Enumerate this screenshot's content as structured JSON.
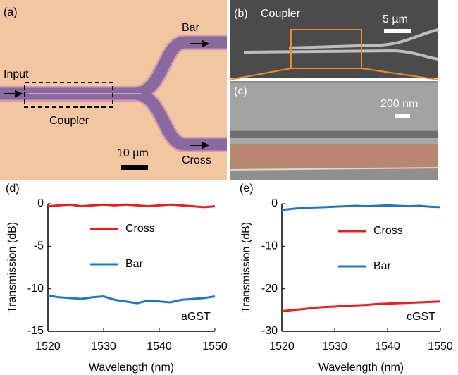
{
  "panels": {
    "a": {
      "label": "(a)",
      "input": "Input",
      "bar": "Bar",
      "cross": "Cross",
      "coupler": "Coupler",
      "scale": "10 µm"
    },
    "b": {
      "label": "(b)",
      "title": "Coupler",
      "scale": "5 µm"
    },
    "c": {
      "label": "(c)",
      "scale": "200 nm"
    }
  },
  "chart_data": [
    {
      "type": "line",
      "panel_label": "(d)",
      "annotation": "aGST",
      "x_label": "Wavelength (nm)",
      "y_label": "Transmission (dB)",
      "x": [
        1520,
        1522,
        1524,
        1526,
        1528,
        1530,
        1532,
        1534,
        1536,
        1538,
        1540,
        1542,
        1544,
        1546,
        1548,
        1550
      ],
      "xlim": [
        1520,
        1550
      ],
      "xticks": [
        1520,
        1530,
        1540,
        1550
      ],
      "ylim": [
        -15,
        0
      ],
      "yticks": [
        -15,
        -10,
        -5,
        0
      ],
      "series": [
        {
          "name": "Cross",
          "color": "#ee1c1c",
          "values": [
            -0.3,
            -0.2,
            -0.1,
            -0.3,
            -0.2,
            -0.1,
            -0.2,
            -0.1,
            -0.2,
            -0.3,
            -0.2,
            -0.1,
            -0.2,
            -0.3,
            -0.4,
            -0.3
          ]
        },
        {
          "name": "Bar",
          "color": "#1f77c4",
          "values": [
            -10.8,
            -11,
            -11.1,
            -11.2,
            -11,
            -10.9,
            -11.3,
            -11.5,
            -11.7,
            -11.4,
            -11.5,
            -11.6,
            -11.3,
            -11.2,
            -11.1,
            -10.9
          ]
        }
      ]
    },
    {
      "type": "line",
      "panel_label": "(e)",
      "annotation": "cGST",
      "x_label": "Wavelength (nm)",
      "y_label": "Transmission (dB)",
      "x": [
        1520,
        1522,
        1524,
        1526,
        1528,
        1530,
        1532,
        1534,
        1536,
        1538,
        1540,
        1542,
        1544,
        1546,
        1548,
        1550
      ],
      "xlim": [
        1520,
        1550
      ],
      "xticks": [
        1520,
        1530,
        1540,
        1550
      ],
      "ylim": [
        -30,
        0
      ],
      "yticks": [
        -30,
        -20,
        -10,
        0
      ],
      "series": [
        {
          "name": "Cross",
          "color": "#ee1c1c",
          "values": [
            -25.3,
            -25,
            -24.8,
            -24.5,
            -24.3,
            -24.2,
            -24,
            -23.9,
            -23.8,
            -23.6,
            -23.5,
            -23.4,
            -23.3,
            -23.2,
            -23.1,
            -23
          ]
        },
        {
          "name": "Bar",
          "color": "#1f77c4",
          "values": [
            -1.5,
            -1.2,
            -1.0,
            -0.9,
            -0.8,
            -0.7,
            -0.6,
            -0.5,
            -0.6,
            -0.5,
            -0.4,
            -0.5,
            -0.6,
            -0.5,
            -0.7,
            -0.8
          ]
        }
      ]
    }
  ]
}
